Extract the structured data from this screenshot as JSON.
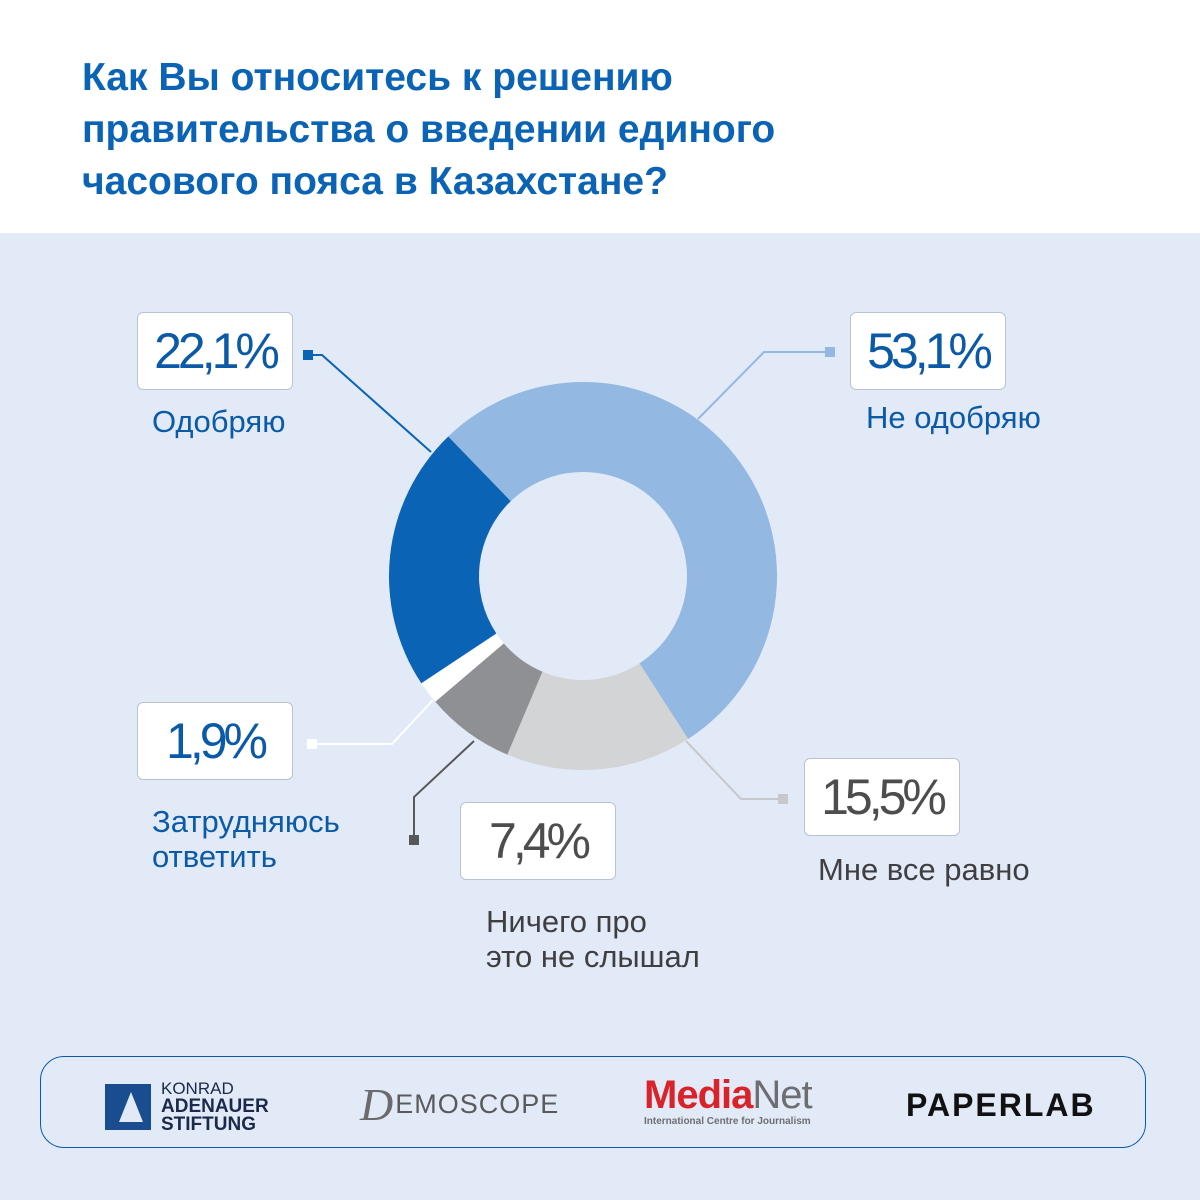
{
  "title_lines": [
    "Как Вы относитесь к решению",
    "правительства о введении единого",
    "часового пояса в Казахстане?"
  ],
  "chart_data": {
    "type": "pie",
    "title": "Как Вы относитесь к решению правительства о введении единого часового пояса в Казахстане?",
    "unit": "%",
    "slices": [
      {
        "label": "Не одобряю",
        "value": 53.1,
        "value_label": "53,1%",
        "color": "#93b8e1"
      },
      {
        "label": "Мне все равно",
        "value": 15.5,
        "value_label": "15,5%",
        "color": "#d3d4d6"
      },
      {
        "label": "Ничего про это не слышал",
        "value": 7.4,
        "value_label": "7,4%",
        "color": "#8f9093"
      },
      {
        "label": "Затрудняюсь ответить",
        "value": 1.9,
        "value_label": "1,9%",
        "color": "#ffffff"
      },
      {
        "label": "Одобряю",
        "value": 22.1,
        "value_label": "22,1%",
        "color": "#0a63b5"
      }
    ]
  },
  "labels": {
    "approve": [
      "Одобряю"
    ],
    "disapprove": [
      "Не одобряю"
    ],
    "indifferent": [
      "Мне все равно"
    ],
    "not_heard": [
      "Ничего про",
      "это не слышал"
    ],
    "hard_to_say": [
      "Затрудняюсь",
      "ответить"
    ]
  },
  "footer": {
    "kas": [
      "KONRAD",
      "ADENAUER",
      "STIFTUNG"
    ],
    "demoscope_initial": "D",
    "demoscope_rest": "EMOSCOPE",
    "medianet_media": "Media",
    "medianet_net": "Net",
    "medianet_sub": "International Centre for Journalism",
    "paperlab": "PAPERLAB"
  }
}
